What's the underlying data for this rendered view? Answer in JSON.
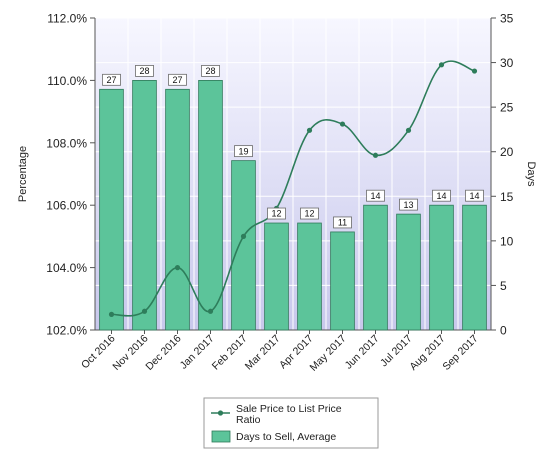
{
  "chart_data": {
    "type": "bar",
    "categories": [
      "Oct 2016",
      "Nov 2016",
      "Dec 2016",
      "Jan 2017",
      "Feb 2017",
      "Mar 2017",
      "Apr 2017",
      "May 2017",
      "Jun 2017",
      "Jul 2017",
      "Aug 2017",
      "Sep 2017"
    ],
    "series": [
      {
        "name": "Days to Sell, Average",
        "type": "bar",
        "axis": "right",
        "values": [
          27,
          28,
          27,
          28,
          19,
          12,
          12,
          11,
          14,
          13,
          14,
          14
        ],
        "labels": [
          "27",
          "28",
          "27",
          "28",
          "19",
          "12",
          "12",
          "11",
          "14",
          "13",
          "14",
          "14"
        ]
      },
      {
        "name": "Sale Price to List Price Ratio",
        "type": "line",
        "axis": "left",
        "values": [
          102.5,
          102.6,
          104.0,
          102.6,
          105.0,
          105.9,
          108.4,
          108.6,
          107.6,
          108.4,
          110.5,
          110.3
        ]
      }
    ],
    "left_axis": {
      "label": "Percentage",
      "ylim": [
        102.0,
        112.0
      ],
      "ticks": [
        "102.0%",
        "104.0%",
        "106.0%",
        "108.0%",
        "110.0%",
        "112.0%"
      ]
    },
    "right_axis": {
      "label": "Days",
      "ylim": [
        0,
        35
      ],
      "ticks": [
        "0",
        "5",
        "10",
        "15",
        "20",
        "25",
        "30",
        "35"
      ]
    },
    "legend": {
      "placement": "bottom-center",
      "line_entry": "Sale Price to List Price Ratio",
      "bar_entry": "Days to Sell, Average"
    },
    "colors": {
      "bar_fill": "#5cc49a",
      "bar_stroke": "#2f7a5a",
      "line": "#2e7d5b",
      "plot_bg_top": "#f7f7ff",
      "plot_bg_bottom": "#c8c8ec",
      "grid": "#ffffff"
    },
    "grid": true
  }
}
